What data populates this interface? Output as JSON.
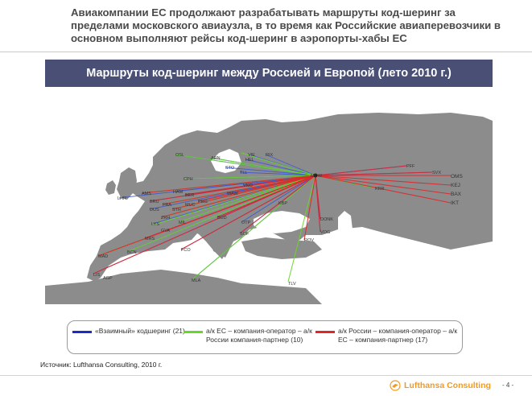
{
  "headline": "Авиакомпании ЕС продолжают разрабатывать маршруты код-шеринг за пределами московского авиаузла, в то время как Российские авиаперевозчики в основном выполняют рейсы код-шеринг в аэропорты-хабы ЕС",
  "banner_title": "Маршруты код-шеринг между Россией и Европой (лето 2010 г.)",
  "legend": [
    {
      "color": "#1a2cc4",
      "text": "«Взаимный» кодшеринг (21)"
    },
    {
      "color": "#6ad62a",
      "text": "а/к ЕС – компания-оператор – а/к России компания-партнер (10)"
    },
    {
      "color": "#e0262a",
      "text": "а/к России – компания-оператор – а/к ЕС – компания-партнер (17)"
    }
  ],
  "source": "Источник: Lufthansa Consulting, 2010 г.",
  "brand": "Lufthansa Consulting",
  "page_number": "- 4 -",
  "map": {
    "hub": "MOW",
    "destinations_right": [
      "OMS",
      "KEJ",
      "BAX",
      "IKT"
    ],
    "city_labels": [
      "OSL",
      "ARN",
      "VIE",
      "RIX",
      "HEL",
      "STO",
      "TLL",
      "CPH",
      "AMS",
      "BRU",
      "LHR",
      "HAM",
      "BER",
      "FRA",
      "DUS",
      "STR",
      "MUC",
      "ZRH",
      "LYS",
      "PRG",
      "WAW",
      "KBP",
      "VNO",
      "BUD",
      "GVA",
      "MIL",
      "MRS",
      "MAD",
      "BCN",
      "FCO",
      "OTP",
      "SOF",
      "LIS",
      "AGP",
      "MLA",
      "TLV",
      "PFF",
      "SVX",
      "KRR",
      "DONK",
      "VOG",
      "ROV"
    ]
  }
}
